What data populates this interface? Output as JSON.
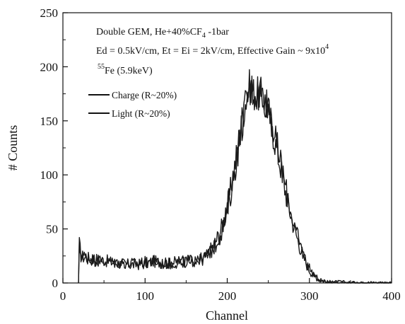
{
  "chart_data": {
    "type": "line",
    "xlabel": "Channel",
    "ylabel": "# Counts",
    "xlim": [
      0,
      400
    ],
    "ylim": [
      0,
      250
    ],
    "x_ticks": [
      "0",
      "100",
      "200",
      "300",
      "400"
    ],
    "y_ticks": [
      "0",
      "50",
      "100",
      "150",
      "200",
      "250"
    ],
    "grid": false,
    "legend_placement": "upper-left",
    "annotations": {
      "line1": "Double GEM, He+40%CF",
      "line1_sub": "4",
      "line1_tail": " -1bar",
      "line2": "Ed = 0.5kV/cm, Et = Ei = 2kV/cm, Effective Gain ~ 9x10",
      "line2_sup": "4",
      "line3_sup": "55",
      "line3": "Fe (5.9keV)"
    },
    "series": [
      {
        "name": "Charge (R~20%)",
        "x": [
          19,
          20,
          22,
          25,
          30,
          40,
          50,
          60,
          70,
          80,
          90,
          100,
          110,
          120,
          130,
          140,
          150,
          160,
          170,
          175,
          180,
          185,
          190,
          195,
          200,
          205,
          210,
          215,
          220,
          225,
          228,
          232,
          236,
          240,
          245,
          250,
          255,
          260,
          265,
          270,
          275,
          280,
          285,
          290,
          295,
          300,
          305,
          310,
          315,
          320,
          330,
          340,
          350,
          360,
          370,
          380,
          390,
          400
        ],
        "y": [
          0,
          36,
          25,
          24,
          23,
          22,
          21,
          19,
          18,
          17,
          17,
          18,
          20,
          19,
          18,
          20,
          20,
          20,
          22,
          25,
          31,
          37,
          45,
          55,
          70,
          90,
          112,
          138,
          160,
          178,
          182,
          176,
          174,
          175,
          170,
          160,
          142,
          124,
          108,
          88,
          70,
          55,
          42,
          30,
          20,
          12,
          7,
          4,
          2,
          1,
          1,
          1,
          0,
          0,
          0,
          0,
          0,
          0
        ]
      },
      {
        "name": "Light (R~20%)",
        "x": [
          19,
          20,
          22,
          25,
          30,
          40,
          50,
          60,
          70,
          80,
          90,
          100,
          110,
          120,
          130,
          140,
          150,
          160,
          170,
          175,
          180,
          185,
          190,
          195,
          200,
          205,
          210,
          215,
          220,
          225,
          228,
          232,
          236,
          240,
          245,
          250,
          255,
          260,
          265,
          270,
          275,
          280,
          285,
          290,
          295,
          300,
          305,
          310,
          315,
          320,
          330,
          340,
          350,
          360,
          370,
          380,
          390,
          400
        ],
        "y": [
          0,
          33,
          27,
          25,
          23,
          21,
          20,
          19,
          19,
          18,
          18,
          19,
          20,
          18,
          18,
          19,
          20,
          21,
          22,
          24,
          29,
          34,
          41,
          52,
          66,
          86,
          108,
          132,
          156,
          174,
          180,
          178,
          175,
          176,
          172,
          163,
          146,
          128,
          112,
          92,
          74,
          58,
          44,
          32,
          22,
          14,
          8,
          4,
          2,
          1,
          1,
          0,
          0,
          0,
          0,
          0,
          0,
          0
        ]
      }
    ]
  }
}
